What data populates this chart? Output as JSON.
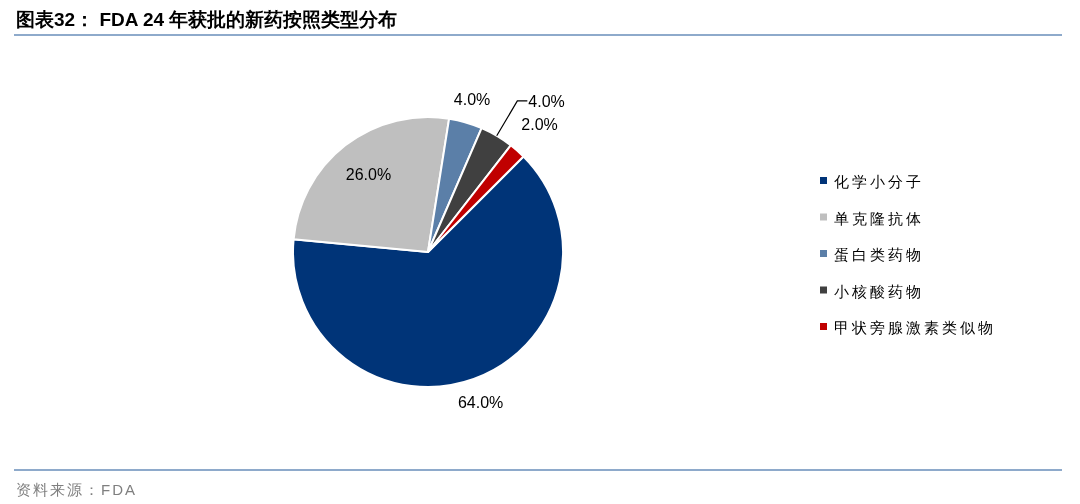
{
  "chart_data": {
    "type": "pie",
    "title": "图表32：  FDA 24 年获批的新药按照类型分布",
    "categories": [
      "化学小分子",
      "单克隆抗体",
      "蛋白类药物",
      "小核酸药物",
      "甲状旁腺激素类似物"
    ],
    "values": [
      64,
      26,
      4,
      4,
      2
    ],
    "colors": [
      "#003478",
      "#bfbfbf",
      "#5b7fa8",
      "#404040",
      "#c00000"
    ],
    "value_labels": [
      "64.0%",
      "26.0%",
      "4.0%",
      "4.0%",
      "2.0%"
    ],
    "legend": "right",
    "annotations": [
      "资料来源：FDA"
    ]
  }
}
